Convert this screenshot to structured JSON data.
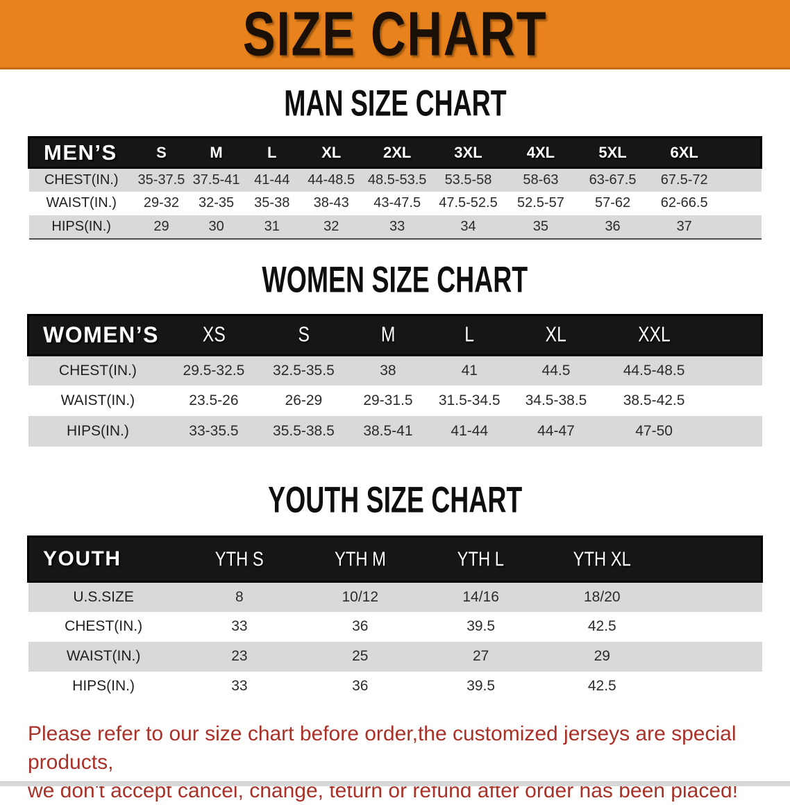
{
  "banner": {
    "title": "SIZE CHART"
  },
  "sections": [
    {
      "heading": "MAN SIZE CHART",
      "table": {
        "corner": "MEN’S",
        "columns": [
          "S",
          "M",
          "L",
          "XL",
          "2XL",
          "3XL",
          "4XL",
          "5XL",
          "6XL"
        ],
        "rows": [
          {
            "label": "CHEST(IN.)",
            "values": [
              "35-37.5",
              "37.5-41",
              "41-44",
              "44-48.5",
              "48.5-53.5",
              "53.5-58",
              "58-63",
              "63-67.5",
              "67.5-72"
            ]
          },
          {
            "label": "WAIST(IN.)",
            "values": [
              "29-32",
              "32-35",
              "35-38",
              "38-43",
              "43-47.5",
              "47.5-52.5",
              "52.5-57",
              "57-62",
              "62-66.5"
            ]
          },
          {
            "label": "HIPS(IN.)",
            "values": [
              "29",
              "30",
              "31",
              "32",
              "33",
              "34",
              "35",
              "36",
              "37"
            ]
          }
        ]
      }
    },
    {
      "heading": "WOMEN SIZE CHART",
      "table": {
        "corner": "WOMEN’S",
        "columns": [
          "XS",
          "S",
          "M",
          "L",
          "XL",
          "XXL"
        ],
        "rows": [
          {
            "label": "CHEST(IN.)",
            "values": [
              "29.5-32.5",
              "32.5-35.5",
              "38",
              "41",
              "44.5",
              "44.5-48.5"
            ]
          },
          {
            "label": "WAIST(IN.)",
            "values": [
              "23.5-26",
              "26-29",
              "29-31.5",
              "31.5-34.5",
              "34.5-38.5",
              "38.5-42.5"
            ]
          },
          {
            "label": "HIPS(IN.)",
            "values": [
              "33-35.5",
              "35.5-38.5",
              "38.5-41",
              "41-44",
              "44-47",
              "47-50"
            ]
          }
        ]
      }
    },
    {
      "heading": "YOUTH SIZE CHART",
      "table": {
        "corner": "YOUTH",
        "columns": [
          "YTH S",
          "YTH M",
          "YTH L",
          "YTH XL"
        ],
        "rows": [
          {
            "label": "U.S.SIZE",
            "values": [
              "8",
              "10/12",
              "14/16",
              "18/20"
            ]
          },
          {
            "label": "CHEST(IN.)",
            "values": [
              "33",
              "36",
              "39.5",
              "42.5"
            ]
          },
          {
            "label": "WAIST(IN.)",
            "values": [
              "23",
              "25",
              "27",
              "29"
            ]
          },
          {
            "label": "HIPS(IN.)",
            "values": [
              "33",
              "36",
              "39.5",
              "42.5"
            ]
          }
        ]
      }
    }
  ],
  "footer": {
    "line1": "Please refer to our size chart before order,the customized jerseys are special products,",
    "line2": "we don't accept cancel, change, teturn or refund after order has been placed!"
  },
  "colors": {
    "banner_bg": "#e8821c",
    "header_bar": "#161616",
    "stripe": "#d9d9d9",
    "footer_text": "#a93128"
  }
}
